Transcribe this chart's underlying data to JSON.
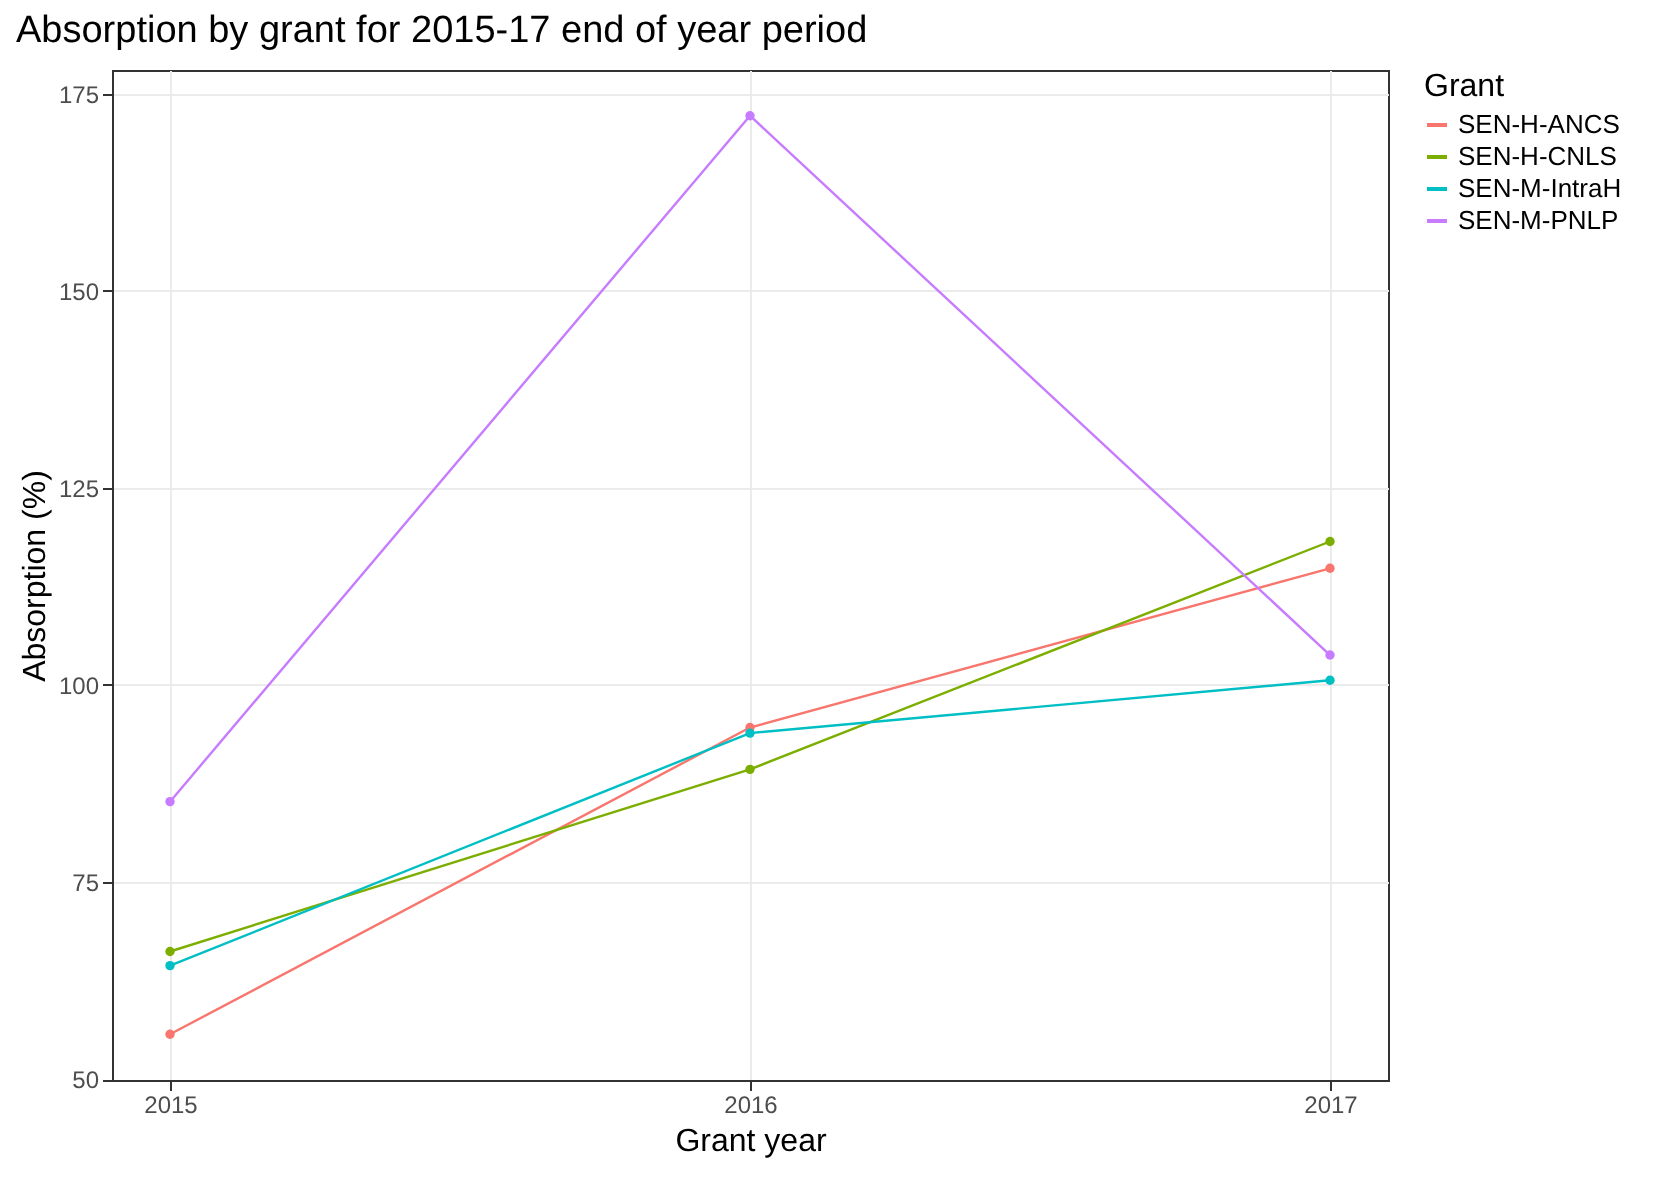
{
  "chart_data": {
    "type": "line",
    "title": "Absorption by grant for 2015-17 end of year period",
    "xlabel": "Grant year",
    "ylabel": "Absorption (%)",
    "legend_title": "Grant",
    "x": [
      2015,
      2016,
      2017
    ],
    "series": [
      {
        "name": "SEN-H-ANCS",
        "color": "#f8766d",
        "values": [
          55.7,
          94.6,
          114.8
        ]
      },
      {
        "name": "SEN-H-CNLS",
        "color": "#7cae00",
        "values": [
          66.2,
          89.3,
          118.2
        ]
      },
      {
        "name": "SEN-M-IntraH",
        "color": "#00bfc4",
        "values": [
          64.4,
          93.9,
          100.6
        ]
      },
      {
        "name": "SEN-M-PNLP",
        "color": "#c77cff",
        "values": [
          85.2,
          172.2,
          103.8
        ]
      }
    ],
    "xlim": [
      2014.9,
      2017.1
    ],
    "xticks": [
      2015,
      2016,
      2017
    ],
    "ylim": [
      49.9,
      178
    ],
    "yticks": [
      50,
      75,
      100,
      125,
      150,
      175
    ],
    "grid": true,
    "legend": "right",
    "marker": "circle",
    "line_style": "solid"
  }
}
